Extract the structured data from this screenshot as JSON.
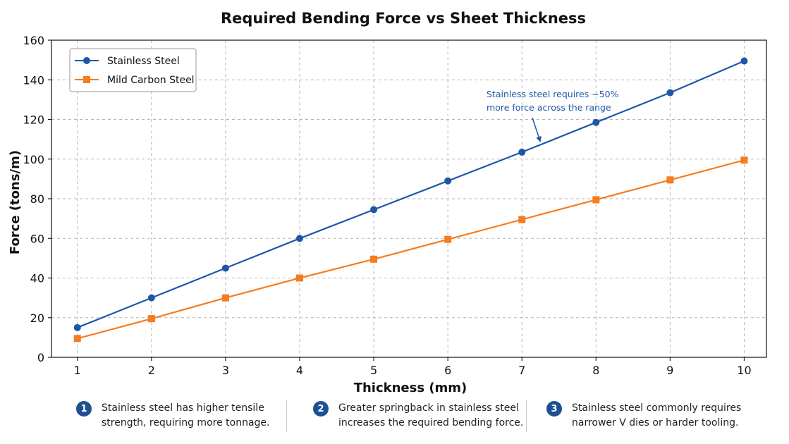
{
  "chart_data": {
    "type": "line",
    "title": "Required Bending Force vs Sheet Thickness",
    "xlabel": "Thickness (mm)",
    "ylabel": "Force (tons/m)",
    "x": [
      1,
      2,
      3,
      4,
      5,
      6,
      7,
      8,
      9,
      10
    ],
    "xlim": [
      0.65,
      10.3
    ],
    "ylim": [
      0,
      160
    ],
    "yticks": [
      0,
      20,
      40,
      60,
      80,
      100,
      120,
      140,
      160
    ],
    "grid": true,
    "legend_position": "top-left",
    "series": [
      {
        "name": "Stainless Steel",
        "color": "#1f57a6",
        "marker": "circle",
        "values": [
          15,
          30,
          45,
          60,
          74.5,
          89,
          103.5,
          118.5,
          133.5,
          149.5
        ]
      },
      {
        "name": "Mild Carbon Steel",
        "color": "#f57c1f",
        "marker": "square",
        "values": [
          9.5,
          19.5,
          30,
          40,
          49.5,
          59.5,
          69.5,
          79.5,
          89.5,
          99.5
        ]
      }
    ],
    "annotation": {
      "lines": [
        "Stainless steel requires ~50%",
        "more force across the range"
      ],
      "target_x": 7.25,
      "target_y": 108.5
    }
  },
  "notes": [
    {
      "number": "1",
      "text": "Stainless steel has higher tensile\nstrength, requiring more tonnage."
    },
    {
      "number": "2",
      "text": "Greater springback in stainless steel\nincreases the required bending force."
    },
    {
      "number": "3",
      "text": "Stainless steel commonly requires\nnarrower V dies or harder tooling."
    }
  ]
}
